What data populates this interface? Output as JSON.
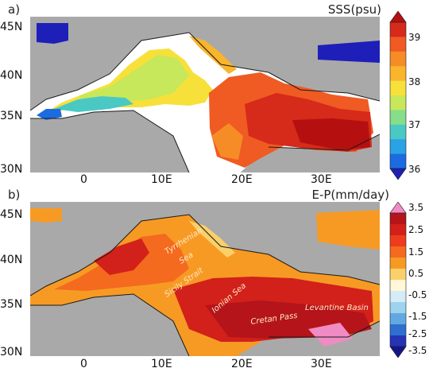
{
  "panels": [
    {
      "id": "a",
      "panel_label": "a)",
      "title": "SSS(psu)",
      "lat_ticks": [
        "45N",
        "40N",
        "35N",
        "30N"
      ],
      "lon_ticks": [
        "0",
        "10E",
        "20E",
        "30E"
      ],
      "colorbar": {
        "labels": [
          "39",
          "38",
          "37",
          "36"
        ],
        "colors": [
          "#b50f10",
          "#d62a1a",
          "#f05a23",
          "#f68c26",
          "#f9b52b",
          "#f7e03a",
          "#c6e85a",
          "#86dd8a",
          "#4ac9c4",
          "#2aa2e4",
          "#1c6be0",
          "#1d1fb8"
        ]
      }
    },
    {
      "id": "b",
      "panel_label": "b)",
      "title": "E-P(mm/day)",
      "lat_ticks": [
        "45N",
        "40N",
        "35N",
        "30N"
      ],
      "lon_ticks": [
        "0",
        "10E",
        "20E",
        "30E"
      ],
      "colorbar": {
        "labels": [
          "3.5",
          "2.5",
          "1.5",
          "0.5",
          "-0.5",
          "-1.5",
          "-2.5",
          "-3.5"
        ],
        "colors": [
          "#f08bc4",
          "#b4141a",
          "#d2201a",
          "#ee3d1c",
          "#f46a1f",
          "#f79a24",
          "#fbd06a",
          "#fff7d6",
          "#d3ecf6",
          "#9ed3ee",
          "#62a9e3",
          "#2e6fd0",
          "#2434b5",
          "#14148a"
        ]
      },
      "region_labels": [
        "Tyrrhenian",
        "Sea",
        "Sicily Strait",
        "Ionian Sea",
        "Cretan Pass",
        "Levantine Basin"
      ]
    }
  ]
}
